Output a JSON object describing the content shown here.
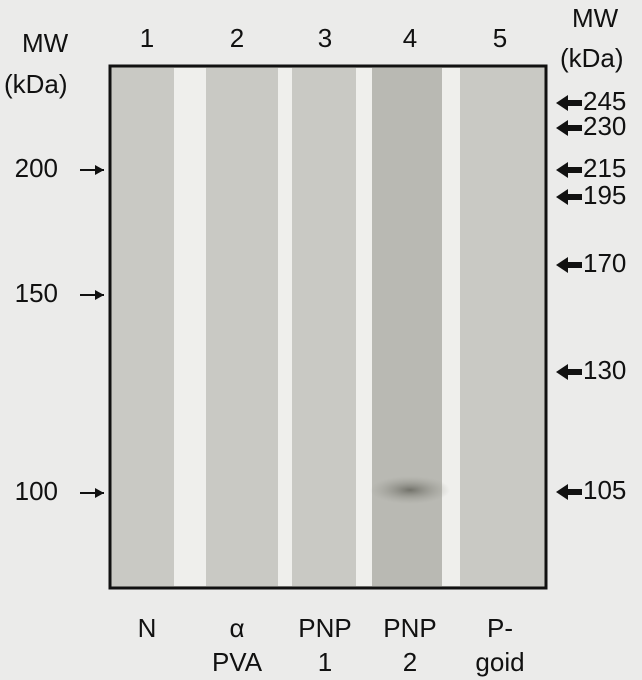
{
  "left_axis": {
    "title": [
      "MW",
      "(kDa)"
    ],
    "markers": [
      "200",
      "150",
      "100"
    ]
  },
  "right_axis": {
    "title": [
      "MW",
      "(kDa)"
    ],
    "markers": [
      "245",
      "230",
      "215",
      "195",
      "170",
      "130",
      "105"
    ]
  },
  "lanes": [
    {
      "number": "1",
      "label": [
        "N"
      ]
    },
    {
      "number": "2",
      "label": [
        "α",
        "PVA"
      ]
    },
    {
      "number": "3",
      "label": [
        "PNP",
        "1"
      ]
    },
    {
      "number": "4",
      "label": [
        "PNP",
        "2"
      ]
    },
    {
      "number": "5",
      "label": [
        "P-",
        "goid"
      ]
    }
  ]
}
